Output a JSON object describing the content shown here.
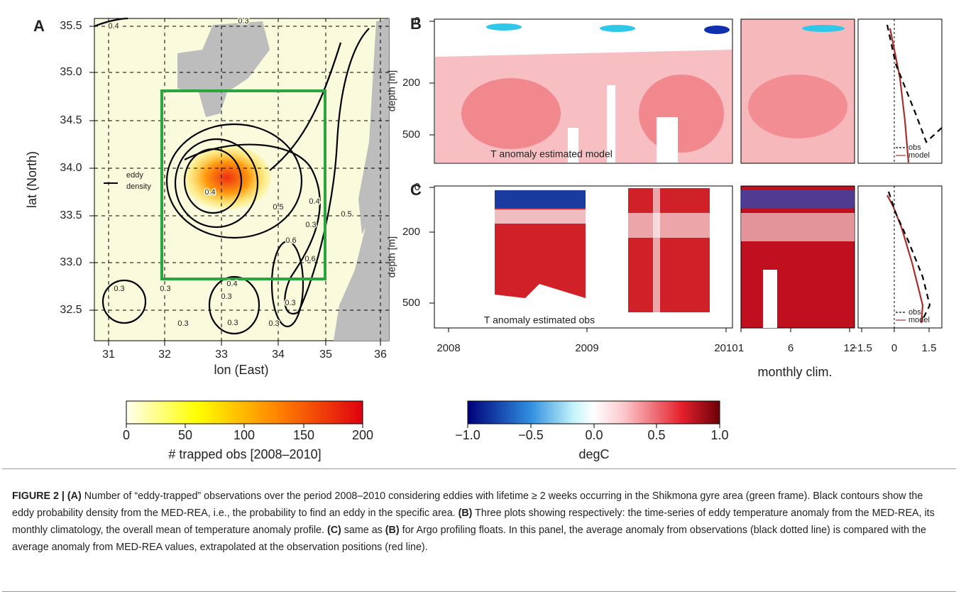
{
  "panel_a": {
    "label": "A",
    "y_axis_title": "lat (North)",
    "x_axis_title": "lon (East)",
    "y_ticks": [
      "35.5",
      "35.0",
      "34.5",
      "34.0",
      "33.5",
      "33.0",
      "32.5"
    ],
    "x_ticks": [
      "31",
      "32",
      "33",
      "34",
      "35",
      "36"
    ],
    "legend": [
      "eddy",
      "density"
    ],
    "contour_labels": [
      "0.4",
      "0.3",
      "0.5",
      "0.4",
      "0.3",
      "0.4",
      "0.5",
      "0.6",
      "0.6",
      "0.3",
      "0.3",
      "0.4",
      "0.3",
      "0.3",
      "0.3",
      "0.3",
      "0.3"
    ],
    "colorbar": {
      "ticks": [
        "0",
        "50",
        "100",
        "150",
        "200"
      ],
      "title": "# trapped obs [2008–2010]"
    }
  },
  "panel_b": {
    "label": "B",
    "y_axis_title": "depth [m]",
    "y_ticks": [
      "0",
      "200",
      "500"
    ],
    "inner_text": "T anomaly estimated model",
    "legend": [
      "obs",
      "model"
    ]
  },
  "panel_c": {
    "label": "C",
    "y_axis_title": "depth [m]",
    "y_ticks": [
      "0",
      "200",
      "500"
    ],
    "inner_text": "T anomaly estimated obs",
    "legend": [
      "obs",
      "model"
    ],
    "time_ticks": [
      "2008",
      "2009",
      "2010"
    ],
    "clim_ticks": [
      "1",
      "6",
      "12"
    ],
    "profile_ticks": [
      "−1.5",
      "0",
      "1.5"
    ],
    "clim_title": "monthly clim."
  },
  "temperature_colorbar": {
    "ticks": [
      "−1.0",
      "−0.5",
      "0.0",
      "0.5",
      "1.0"
    ],
    "title": "degC"
  },
  "caption": [
    {
      "text": "FIGURE 2 | (A)",
      "bold": true
    },
    {
      "text": " Number of “eddy-trapped” observations over the period 2008–2010 considering eddies with lifetime ≥ 2 weeks occurring in the Shikmona gyre area (green frame). Black contours show the eddy probability density from the MED-REA, i.e., the probability to find an eddy in the specific area. ",
      "bold": false
    },
    {
      "text": "(B)",
      "bold": true
    },
    {
      "text": " Three plots showing respectively: the time-series of eddy temperature anomaly from the MED-REA, its monthly climatology, the overall mean of temperature anomaly profile. ",
      "bold": false
    },
    {
      "text": "(C)",
      "bold": true
    },
    {
      "text": " same as ",
      "bold": false
    },
    {
      "text": "(B)",
      "bold": true
    },
    {
      "text": " for Argo profiling floats. In this panel, the average anomaly from observations (black dotted line) is compared with the average anomaly from MED-REA values, extrapolated at the observation positions (red line).",
      "bold": false
    }
  ]
}
